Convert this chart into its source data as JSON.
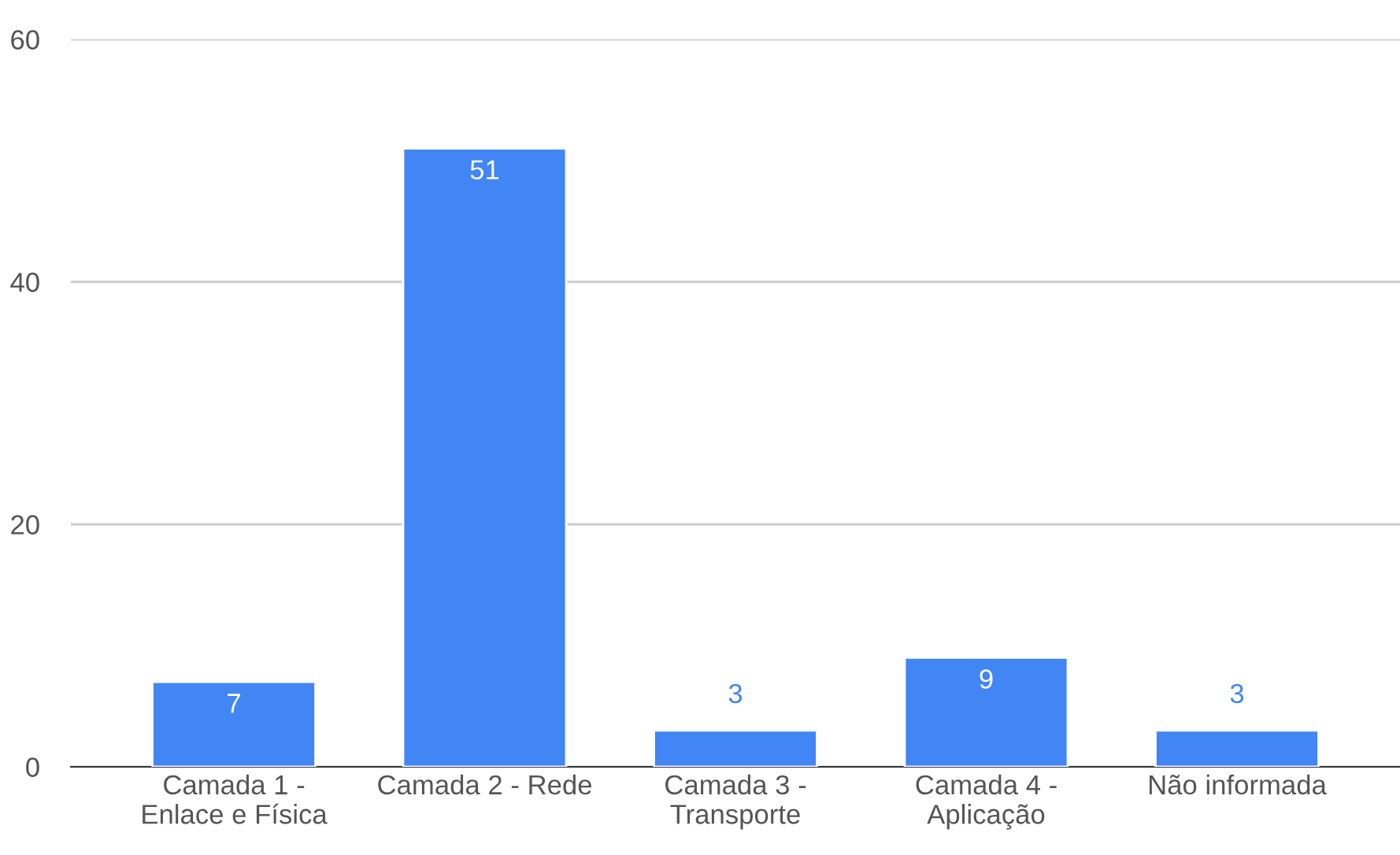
{
  "chart_data": {
    "type": "bar",
    "categories": [
      "Camada 1 -\nEnlace e Física",
      "Camada 2 - Rede",
      "Camada 3 -\nTransporte",
      "Camada 4 -\nAplicação",
      "Não informada"
    ],
    "values": [
      7,
      51,
      3,
      9,
      3
    ],
    "color": "#4285f4",
    "ylim": [
      0,
      60
    ],
    "yticks": [
      0,
      20,
      40,
      60
    ],
    "grid": "y",
    "data_labels": true
  }
}
